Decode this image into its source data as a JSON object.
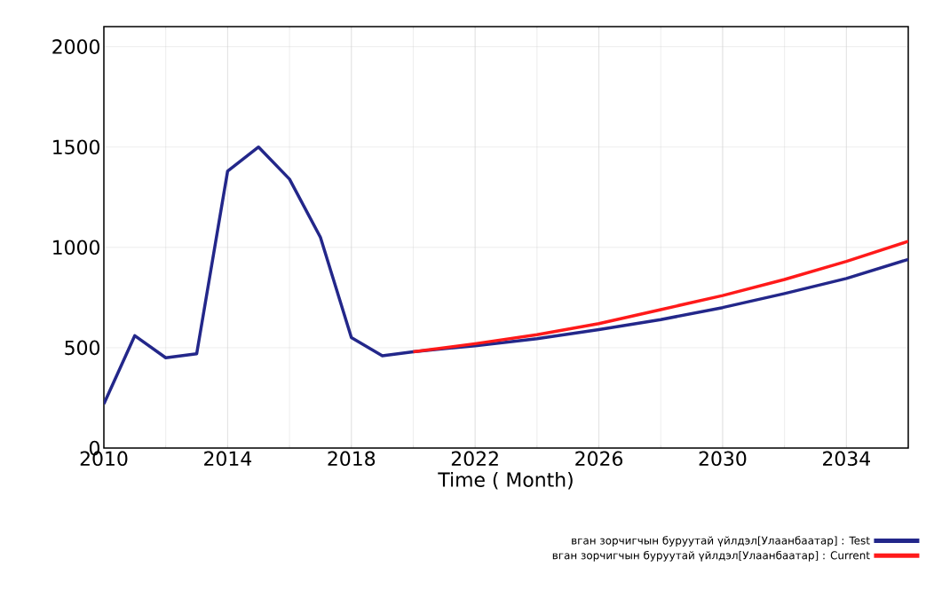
{
  "chart_data": {
    "type": "line",
    "xlabel": "Time ( Month)",
    "x": [
      2010,
      2011,
      2012,
      2013,
      2014,
      2015,
      2016,
      2017,
      2018,
      2019,
      2020,
      2022,
      2024,
      2026,
      2028,
      2030,
      2032,
      2034,
      2036
    ],
    "series": [
      {
        "name": "вган зорчигчын буруутай үйлдэл[Улаанбаатар] : Test",
        "color": "#23278a",
        "values": [
          220,
          560,
          450,
          470,
          1380,
          1500,
          1340,
          1050,
          550,
          460,
          480,
          510,
          545,
          590,
          640,
          700,
          770,
          845,
          940
        ]
      },
      {
        "name": "вган зорчигчын буруутай үйлдэл[Улаанбаатар] : Current",
        "color": "#ff1a1a",
        "values": [
          null,
          null,
          null,
          null,
          null,
          null,
          null,
          null,
          null,
          null,
          480,
          520,
          565,
          620,
          690,
          760,
          840,
          930,
          1030
        ]
      }
    ],
    "xlim": [
      2010,
      2036
    ],
    "ylim": [
      0,
      2100
    ],
    "xticks": [
      2010,
      2014,
      2018,
      2022,
      2026,
      2030,
      2034
    ],
    "yticks": [
      0,
      500,
      1000,
      1500,
      2000
    ],
    "grid": true,
    "legend": "bottom"
  }
}
